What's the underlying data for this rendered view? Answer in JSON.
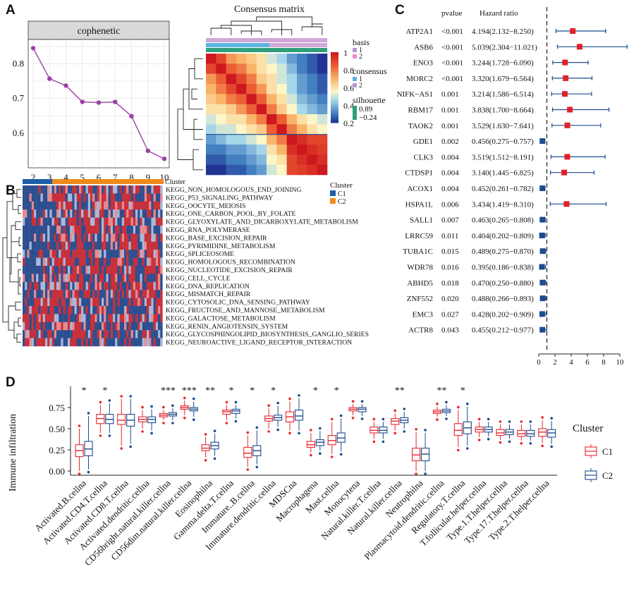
{
  "panels": {
    "a": "A",
    "b": "B",
    "c": "C",
    "d": "D"
  },
  "colors": {
    "cophenetic": "#9b3fa6",
    "c1": "#e8262c",
    "c2": "#1c4b8f",
    "hr_marker": "#e0202a",
    "hr_low": "#1c4b8f",
    "ci_line": "#1c4b8f"
  },
  "chart_data": [
    {
      "id": "A1",
      "type": "line",
      "title": "cophenetic",
      "x": [
        2,
        3,
        4,
        5,
        6,
        7,
        8,
        9,
        10
      ],
      "y": [
        0.845,
        0.757,
        0.737,
        0.69,
        0.688,
        0.69,
        0.649,
        0.549,
        0.526
      ],
      "xticks": [
        "2",
        "3",
        "4",
        "5",
        "6",
        "7",
        "8",
        "9",
        "10"
      ],
      "yticks": [
        "0.6",
        "0.7",
        "0.8"
      ],
      "ylim": [
        0.5,
        0.87
      ]
    },
    {
      "id": "A2",
      "type": "heatmap",
      "title": "Consensus matrix",
      "legend_scale": [
        "1",
        "0.8",
        "0.6",
        "0.4",
        "0.2"
      ],
      "annotations": [
        {
          "name": "basis",
          "levels": [
            "1",
            "2"
          ]
        },
        {
          "name": "consensus",
          "levels": [
            "1",
            "2"
          ]
        },
        {
          "name": "silhouette",
          "levels": [
            "0.89",
            "−0.24"
          ]
        }
      ],
      "matrix": [
        [
          1,
          0.9,
          0.75,
          0.7,
          0.65,
          0.6,
          0.5,
          0.45,
          0.35,
          0.3,
          0.25,
          0.2
        ],
        [
          0.9,
          1,
          0.85,
          0.8,
          0.7,
          0.6,
          0.55,
          0.5,
          0.4,
          0.3,
          0.25,
          0.2
        ],
        [
          0.75,
          0.85,
          1,
          0.9,
          0.8,
          0.65,
          0.6,
          0.5,
          0.45,
          0.35,
          0.3,
          0.25
        ],
        [
          0.7,
          0.8,
          0.9,
          1,
          0.85,
          0.75,
          0.6,
          0.55,
          0.45,
          0.35,
          0.3,
          0.25
        ],
        [
          0.65,
          0.7,
          0.8,
          0.85,
          1,
          0.85,
          0.7,
          0.6,
          0.5,
          0.4,
          0.35,
          0.3
        ],
        [
          0.6,
          0.6,
          0.65,
          0.75,
          0.85,
          1,
          0.8,
          0.65,
          0.55,
          0.45,
          0.4,
          0.35
        ],
        [
          0.5,
          0.55,
          0.6,
          0.6,
          0.7,
          0.8,
          1,
          0.85,
          0.7,
          0.6,
          0.55,
          0.5
        ],
        [
          0.45,
          0.5,
          0.5,
          0.55,
          0.6,
          0.65,
          0.85,
          1,
          0.8,
          0.7,
          0.6,
          0.55
        ],
        [
          0.35,
          0.4,
          0.45,
          0.45,
          0.5,
          0.55,
          0.7,
          0.8,
          1,
          0.95,
          0.9,
          0.9
        ],
        [
          0.3,
          0.3,
          0.35,
          0.35,
          0.4,
          0.45,
          0.6,
          0.7,
          0.95,
          1,
          0.95,
          0.92
        ],
        [
          0.25,
          0.25,
          0.3,
          0.3,
          0.35,
          0.4,
          0.55,
          0.6,
          0.9,
          0.95,
          1,
          0.95
        ],
        [
          0.2,
          0.2,
          0.25,
          0.25,
          0.3,
          0.35,
          0.5,
          0.55,
          0.9,
          0.92,
          0.95,
          1
        ]
      ]
    },
    {
      "id": "B",
      "type": "heatmap",
      "legend_title": "Cluster",
      "column_label": "Cluster",
      "groups": [
        {
          "name": "C1",
          "color": "#1c5fa8"
        },
        {
          "name": "C2",
          "color": "#f08a1c"
        }
      ],
      "rows": [
        "KEGG_NON_HOMOLOGOUS_END_JOINING",
        "KEGG_P53_SIGNALING_PATHWAY",
        "KEGG_OOCYTE_MEIOSIS",
        "KEGG_ONE_CARBON_POOL_BY_FOLATE",
        "KEGG_GLYOXYLATE_AND_DICARBOXYLATE_METABOLISM",
        "KEGG_RNA_POLYMERASE",
        "KEGG_BASE_EXCISION_REPAIR",
        "KEGG_PYRIMIDINE_METABOLISM",
        "KEGG_SPLICEOSOME",
        "KEGG_HOMOLOGOUS_RECOMBINATION",
        "KEGG_NUCLEOTIDE_EXCISION_REPAIR",
        "KEGG_CELL_CYCLE",
        "KEGG_DNA_REPLICATION",
        "KEGG_MISMATCH_REPAIR",
        "KEGG_CYTOSOLIC_DNA_SENSING_PATHWAY",
        "KEGG_FRUCTOSE_AND_MANNOSE_METABOLISM",
        "KEGG_GALACTOSE_METABOLISM",
        "KEGG_RENIN_ANGIOTENSIN_SYSTEM",
        "KEGG_GLYCOSPHINGOLIPID_BIOSYNTHESIS_GANGLIO_SERIES",
        "KEGG_NEUROACTIVE_LIGAND_RECEPTOR_INTERACTION"
      ]
    },
    {
      "id": "C",
      "type": "forest",
      "columns": {
        "pvalue": "pvalue",
        "hr": "Hazard ratio"
      },
      "xticks": [
        "0",
        "2",
        "4",
        "6",
        "8",
        "10"
      ],
      "xlim": [
        0,
        10
      ],
      "reference_line": 1,
      "rows": [
        {
          "gene": "ATP2A1",
          "p": "<0.001",
          "hr_text": "4.194(2.132−8.250)",
          "hr": 4.194,
          "lo": 2.132,
          "hi": 8.25
        },
        {
          "gene": "ASB6",
          "p": "<0.001",
          "hr_text": "5.039(2.304−11.021)",
          "hr": 5.039,
          "lo": 2.304,
          "hi": 11.021
        },
        {
          "gene": "ENO3",
          "p": "<0.001",
          "hr_text": "3.244(1.728−6.090)",
          "hr": 3.244,
          "lo": 1.728,
          "hi": 6.09
        },
        {
          "gene": "MORC2",
          "p": "<0.001",
          "hr_text": "3.320(1.679−6.564)",
          "hr": 3.32,
          "lo": 1.679,
          "hi": 6.564
        },
        {
          "gene": "NIFK−AS1",
          "p": "0.001",
          "hr_text": "3.214(1.586−6.514)",
          "hr": 3.214,
          "lo": 1.586,
          "hi": 6.514
        },
        {
          "gene": "RBM17",
          "p": "0.001",
          "hr_text": "3.838(1.700−8.664)",
          "hr": 3.838,
          "lo": 1.7,
          "hi": 8.664
        },
        {
          "gene": "TAOK2",
          "p": "0.001",
          "hr_text": "3.529(1.630−7.641)",
          "hr": 3.529,
          "lo": 1.63,
          "hi": 7.641
        },
        {
          "gene": "GDE1",
          "p": "0.002",
          "hr_text": "0.456(0.275−0.757)",
          "hr": 0.456,
          "lo": 0.275,
          "hi": 0.757
        },
        {
          "gene": "CLK3",
          "p": "0.004",
          "hr_text": "3.519(1.512−8.191)",
          "hr": 3.519,
          "lo": 1.512,
          "hi": 8.191
        },
        {
          "gene": "CTDSP1",
          "p": "0.004",
          "hr_text": "3.140(1.445−6.825)",
          "hr": 3.14,
          "lo": 1.445,
          "hi": 6.825
        },
        {
          "gene": "ACOX1",
          "p": "0.004",
          "hr_text": "0.452(0.261−0.782)",
          "hr": 0.452,
          "lo": 0.261,
          "hi": 0.782
        },
        {
          "gene": "HSPA1L",
          "p": "0.006",
          "hr_text": "3.434(1.419−8.310)",
          "hr": 3.434,
          "lo": 1.419,
          "hi": 8.31
        },
        {
          "gene": "SALL1",
          "p": "0.007",
          "hr_text": "0.463(0.265−0.808)",
          "hr": 0.463,
          "lo": 0.265,
          "hi": 0.808
        },
        {
          "gene": "LRRC59",
          "p": "0.011",
          "hr_text": "0.404(0.202−0.809)",
          "hr": 0.404,
          "lo": 0.202,
          "hi": 0.809
        },
        {
          "gene": "TUBA1C",
          "p": "0.015",
          "hr_text": "0.489(0.275−0.870)",
          "hr": 0.489,
          "lo": 0.275,
          "hi": 0.87
        },
        {
          "gene": "WDR78",
          "p": "0.016",
          "hr_text": "0.395(0.186−0.838)",
          "hr": 0.395,
          "lo": 0.186,
          "hi": 0.838
        },
        {
          "gene": "ABHD5",
          "p": "0.018",
          "hr_text": "0.470(0.250−0.880)",
          "hr": 0.47,
          "lo": 0.25,
          "hi": 0.88
        },
        {
          "gene": "ZNF552",
          "p": "0.020",
          "hr_text": "0.488(0.266−0.893)",
          "hr": 0.488,
          "lo": 0.266,
          "hi": 0.893
        },
        {
          "gene": "EMC3",
          "p": "0.027",
          "hr_text": "0.428(0.202−0.909)",
          "hr": 0.428,
          "lo": 0.202,
          "hi": 0.909
        },
        {
          "gene": "ACTR8",
          "p": "0.043",
          "hr_text": "0.455(0.212−0.977)",
          "hr": 0.455,
          "lo": 0.212,
          "hi": 0.977
        }
      ]
    },
    {
      "id": "D",
      "type": "boxplot",
      "ylabel": "Immune infiltration",
      "yticks": [
        "0.00",
        "0.25",
        "0.50",
        "0.75"
      ],
      "ylim": [
        -0.05,
        1.0
      ],
      "legend_title": "Cluster",
      "series": [
        "C1",
        "C2"
      ],
      "categories": [
        {
          "name": "Activated.B.cellna",
          "sig": "*",
          "c1": [
            0.0,
            0.17,
            0.24,
            0.31,
            0.5
          ],
          "c2": [
            0.02,
            0.18,
            0.26,
            0.35,
            0.65
          ]
        },
        {
          "name": "Activated.CD4.T.cellna",
          "sig": "*",
          "c1": [
            0.45,
            0.56,
            0.62,
            0.67,
            0.78
          ],
          "c2": [
            0.45,
            0.56,
            0.61,
            0.67,
            0.8
          ]
        },
        {
          "name": "Activated.CD8.T.cellna",
          "sig": "",
          "c1": [
            0.3,
            0.55,
            0.6,
            0.67,
            0.85
          ],
          "c2": [
            0.32,
            0.53,
            0.6,
            0.67,
            0.85
          ]
        },
        {
          "name": "Activated.dendritic.cellna",
          "sig": "",
          "c1": [
            0.5,
            0.58,
            0.61,
            0.64,
            0.72
          ],
          "c2": [
            0.48,
            0.57,
            0.61,
            0.64,
            0.73
          ]
        },
        {
          "name": "CD56bright.natural.killer.cellna",
          "sig": "***",
          "c1": [
            0.6,
            0.64,
            0.66,
            0.68,
            0.72
          ],
          "c2": [
            0.6,
            0.65,
            0.67,
            0.69,
            0.74
          ]
        },
        {
          "name": "CD56dim.natural.killer.cellna",
          "sig": "***",
          "c1": [
            0.66,
            0.73,
            0.75,
            0.77,
            0.83
          ],
          "c2": [
            0.64,
            0.71,
            0.73,
            0.75,
            0.82
          ]
        },
        {
          "name": "Eosinophilna",
          "sig": "**",
          "c1": [
            0.16,
            0.24,
            0.27,
            0.31,
            0.4
          ],
          "c2": [
            0.18,
            0.26,
            0.3,
            0.34,
            0.44
          ]
        },
        {
          "name": "Gamma.delta.T.cellna",
          "sig": "*",
          "c1": [
            0.6,
            0.67,
            0.7,
            0.72,
            0.78
          ],
          "c2": [
            0.62,
            0.68,
            0.71,
            0.73,
            0.78
          ]
        },
        {
          "name": "Immature..B.cellna",
          "sig": "*",
          "c1": [
            0.05,
            0.16,
            0.21,
            0.28,
            0.42
          ],
          "c2": [
            0.08,
            0.18,
            0.24,
            0.3,
            0.48
          ]
        },
        {
          "name": "Immature.dendritic.cellna",
          "sig": "*",
          "c1": [
            0.5,
            0.59,
            0.62,
            0.65,
            0.74
          ],
          "c2": [
            0.52,
            0.6,
            0.63,
            0.66,
            0.77
          ]
        },
        {
          "name": "MDSCna",
          "sig": "",
          "c1": [
            0.48,
            0.58,
            0.64,
            0.7,
            0.82
          ],
          "c2": [
            0.48,
            0.6,
            0.65,
            0.72,
            0.86
          ]
        },
        {
          "name": "Macrophagena",
          "sig": "*",
          "c1": [
            0.22,
            0.28,
            0.31,
            0.35,
            0.45
          ],
          "c2": [
            0.24,
            0.3,
            0.34,
            0.37,
            0.47
          ]
        },
        {
          "name": "Mast.cellna",
          "sig": "*",
          "c1": [
            0.2,
            0.31,
            0.36,
            0.42,
            0.58
          ],
          "c2": [
            0.23,
            0.34,
            0.39,
            0.45,
            0.62
          ]
        },
        {
          "name": "Monocytena",
          "sig": "",
          "c1": [
            0.66,
            0.71,
            0.73,
            0.75,
            0.79
          ],
          "c2": [
            0.65,
            0.7,
            0.73,
            0.75,
            0.79
          ]
        },
        {
          "name": "Natural.killer.T.cellna",
          "sig": "",
          "c1": [
            0.38,
            0.45,
            0.48,
            0.52,
            0.58
          ],
          "c2": [
            0.38,
            0.45,
            0.48,
            0.52,
            0.58
          ]
        },
        {
          "name": "Natural.killer.cellna",
          "sig": "**",
          "c1": [
            0.48,
            0.55,
            0.59,
            0.62,
            0.68
          ],
          "c2": [
            0.5,
            0.57,
            0.6,
            0.63,
            0.7
          ]
        },
        {
          "name": "Neutrophilna",
          "sig": "",
          "c1": [
            0.0,
            0.12,
            0.19,
            0.27,
            0.46
          ],
          "c2": [
            0.0,
            0.12,
            0.2,
            0.27,
            0.45
          ]
        },
        {
          "name": "Plasmacytoid.dendritic.cellna",
          "sig": "**",
          "c1": [
            0.64,
            0.68,
            0.7,
            0.72,
            0.76
          ],
          "c2": [
            0.65,
            0.69,
            0.71,
            0.73,
            0.78
          ]
        },
        {
          "name": "Regulatory.T.cellna",
          "sig": "*",
          "c1": [
            0.28,
            0.42,
            0.48,
            0.56,
            0.72
          ],
          "c2": [
            0.3,
            0.44,
            0.51,
            0.58,
            0.76
          ]
        },
        {
          "name": "T.follicular.helper.cellna",
          "sig": "",
          "c1": [
            0.4,
            0.46,
            0.49,
            0.52,
            0.58
          ],
          "c2": [
            0.41,
            0.46,
            0.49,
            0.52,
            0.58
          ]
        },
        {
          "name": "Type.1.T.helper.cellna",
          "sig": "",
          "c1": [
            0.37,
            0.42,
            0.45,
            0.49,
            0.55
          ],
          "c2": [
            0.38,
            0.43,
            0.46,
            0.49,
            0.55
          ]
        },
        {
          "name": "Type.17.T.helper.cellna",
          "sig": "",
          "c1": [
            0.36,
            0.41,
            0.44,
            0.48,
            0.55
          ],
          "c2": [
            0.36,
            0.41,
            0.44,
            0.48,
            0.55
          ]
        },
        {
          "name": "Type.2.T.helper.cellna",
          "sig": "",
          "c1": [
            0.33,
            0.41,
            0.46,
            0.5,
            0.6
          ],
          "c2": [
            0.32,
            0.4,
            0.45,
            0.49,
            0.59
          ]
        }
      ]
    }
  ]
}
